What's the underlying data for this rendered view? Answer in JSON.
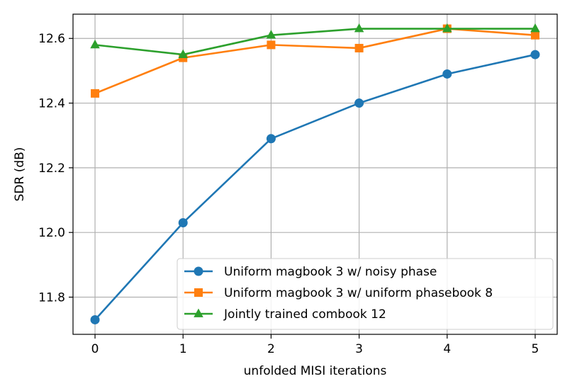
{
  "chart_data": {
    "type": "line",
    "xlabel": "unfolded MISI iterations",
    "ylabel": "SDR (dB)",
    "x": [
      0,
      1,
      2,
      3,
      4,
      5
    ],
    "xticks": [
      "0",
      "1",
      "2",
      "3",
      "4",
      "5"
    ],
    "yticks": [
      "11.8",
      "12.0",
      "12.2",
      "12.4",
      "12.6"
    ],
    "xlim": [
      -0.25,
      5.25
    ],
    "ylim": [
      11.685,
      12.675
    ],
    "grid": true,
    "legend_position": "lower-right",
    "series": [
      {
        "name": "Uniform magbook 3 w/ noisy phase",
        "color": "#1f77b4",
        "marker": "circle",
        "values": [
          11.73,
          12.03,
          12.29,
          12.4,
          12.49,
          12.55
        ]
      },
      {
        "name": "Uniform magbook 3 w/ uniform phasebook 8",
        "color": "#ff7f0e",
        "marker": "square",
        "values": [
          12.43,
          12.54,
          12.58,
          12.57,
          12.63,
          12.61
        ]
      },
      {
        "name": "Jointly trained combook 12",
        "color": "#2ca02c",
        "marker": "triangle",
        "values": [
          12.58,
          12.55,
          12.61,
          12.63,
          12.63,
          12.63
        ]
      }
    ]
  }
}
